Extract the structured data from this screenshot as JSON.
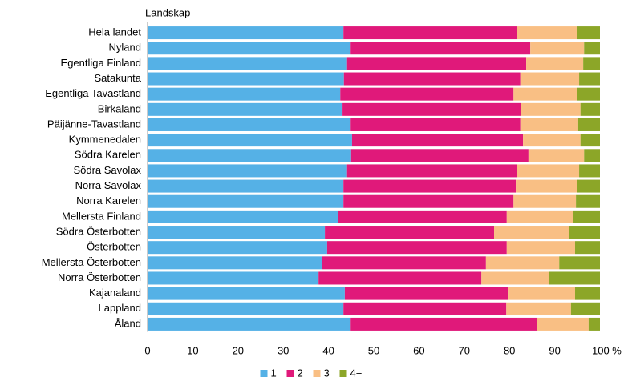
{
  "chart_data": {
    "type": "stacked_barh",
    "title": "Landskap",
    "categories": [
      "Hela landet",
      "Nyland",
      "Egentliga Finland",
      "Satakunta",
      "Egentliga Tavastland",
      "Birkaland",
      "Päijänne-Tavastland",
      "Kymmenedalen",
      "Södra Karelen",
      "Södra Savolax",
      "Norra Savolax",
      "Norra Karelen",
      "Mellersta Finland",
      "Södra Österbotten",
      "Österbotten",
      "Mellersta Österbotten",
      "Norra Österbotten",
      "Kajanaland",
      "Lappland",
      "Åland"
    ],
    "series": [
      {
        "name": "1",
        "color": "#55b1e6",
        "values": [
          43.3,
          44.9,
          44.1,
          43.4,
          42.6,
          43.1,
          44.9,
          45.2,
          45.0,
          44.1,
          43.3,
          43.3,
          42.2,
          39.2,
          39.7,
          38.5,
          37.8,
          43.6,
          43.3,
          44.9
        ]
      },
      {
        "name": "2",
        "color": "#e0197a",
        "values": [
          38.4,
          39.7,
          39.6,
          39.0,
          38.3,
          39.5,
          37.5,
          37.8,
          39.2,
          37.6,
          38.1,
          37.6,
          37.2,
          37.4,
          39.7,
          36.3,
          36.0,
          36.2,
          36.0,
          41.1
        ]
      },
      {
        "name": "3",
        "color": "#f9bf84",
        "values": [
          13.3,
          11.9,
          12.6,
          13.0,
          14.1,
          13.1,
          12.8,
          12.7,
          12.3,
          13.7,
          13.6,
          13.8,
          14.6,
          16.5,
          15.1,
          16.2,
          15.0,
          14.7,
          14.3,
          11.5
        ]
      },
      {
        "name": "4+",
        "color": "#8ca628",
        "values": [
          5.0,
          3.5,
          3.7,
          4.6,
          5.0,
          4.3,
          4.8,
          4.3,
          3.5,
          4.6,
          5.0,
          5.3,
          6.0,
          6.9,
          5.5,
          9.0,
          11.2,
          5.5,
          6.4,
          2.5
        ]
      }
    ],
    "xlim": [
      0,
      100
    ],
    "xticks": [
      0,
      10,
      20,
      30,
      40,
      50,
      60,
      70,
      80,
      90,
      {
        "value": 100,
        "label": "100 %"
      }
    ],
    "legend": "bottom"
  }
}
